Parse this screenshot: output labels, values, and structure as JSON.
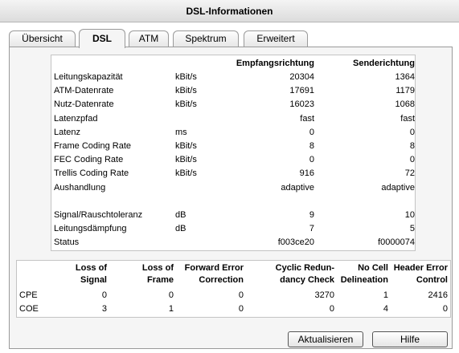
{
  "window": {
    "title": "DSL-Informationen"
  },
  "tabs": [
    {
      "label": "Übersicht"
    },
    {
      "label": "DSL"
    },
    {
      "label": "ATM"
    },
    {
      "label": "Spektrum"
    },
    {
      "label": "Erweitert"
    }
  ],
  "dsl_table": {
    "headers": {
      "rx": "Empfangsrichtung",
      "tx": "Senderichtung"
    },
    "rows": [
      {
        "label": "Leitungskapazität",
        "unit": "kBit/s",
        "rx": "20304",
        "tx": "1364"
      },
      {
        "label": "ATM-Datenrate",
        "unit": "kBit/s",
        "rx": "17691",
        "tx": "1179"
      },
      {
        "label": "Nutz-Datenrate",
        "unit": "kBit/s",
        "rx": "16023",
        "tx": "1068"
      },
      {
        "label": "Latenzpfad",
        "unit": "",
        "rx": "fast",
        "tx": "fast"
      },
      {
        "label": "Latenz",
        "unit": "ms",
        "rx": "0",
        "tx": "0"
      },
      {
        "label": "Frame Coding Rate",
        "unit": "kBit/s",
        "rx": "8",
        "tx": "8"
      },
      {
        "label": "FEC Coding Rate",
        "unit": "kBit/s",
        "rx": "0",
        "tx": "0"
      },
      {
        "label": "Trellis Coding Rate",
        "unit": "kBit/s",
        "rx": "916",
        "tx": "72"
      },
      {
        "label": "Aushandlung",
        "unit": "",
        "rx": "adaptive",
        "tx": "adaptive"
      },
      {
        "label": "",
        "unit": "",
        "rx": "",
        "tx": ""
      },
      {
        "label": "Signal/Rauschtoleranz",
        "unit": "dB",
        "rx": "9",
        "tx": "10"
      },
      {
        "label": "Leitungsdämpfung",
        "unit": "dB",
        "rx": "7",
        "tx": "5"
      },
      {
        "label": "Status",
        "unit": "",
        "rx": "f003ce20",
        "tx": "f0000074"
      }
    ]
  },
  "error_table": {
    "headers": [
      {
        "line1": "Loss of",
        "line2": "Signal"
      },
      {
        "line1": "Loss of",
        "line2": "Frame"
      },
      {
        "line1": "Forward Error",
        "line2": "Correction"
      },
      {
        "line1": "Cyclic Redun-",
        "line2": "dancy Check"
      },
      {
        "line1": "No Cell",
        "line2": "Delineation"
      },
      {
        "line1": "Header Error",
        "line2": "Control"
      }
    ],
    "rows": [
      {
        "label": "CPE",
        "values": [
          "0",
          "0",
          "0",
          "3270",
          "1",
          "2416"
        ]
      },
      {
        "label": "COE",
        "values": [
          "3",
          "1",
          "0",
          "0",
          "4",
          "0"
        ]
      }
    ]
  },
  "buttons": {
    "refresh": "Aktualisieren",
    "help": "Hilfe"
  }
}
